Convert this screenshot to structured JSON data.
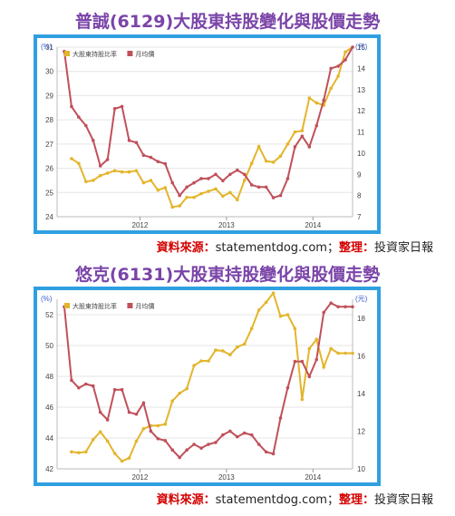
{
  "charts": [
    {
      "title": "普誠(6129)大股東持股變化與股價走勢",
      "source": {
        "label": "資料來源：",
        "site": "statementdog.com",
        "sep": "；",
        "label2": "整理：",
        "by": "投資家日報"
      },
      "chart_data": {
        "type": "line",
        "left_axis": {
          "unit": "(%)",
          "ylim": [
            24,
            31
          ],
          "ticks": [
            24,
            25,
            26,
            27,
            28,
            29,
            30,
            31
          ]
        },
        "right_axis": {
          "unit": "(元)",
          "ylim": [
            7,
            15
          ],
          "ticks": [
            7,
            8,
            9,
            10,
            11,
            12,
            13,
            14,
            15
          ]
        },
        "x_ticks": [
          "2012",
          "2013",
          "2014"
        ],
        "x_tick_positions": [
          11.5,
          23.5,
          35.5
        ],
        "x_range": [
          0,
          41
        ],
        "series": [
          {
            "name": "大股東持股比率",
            "axis": "left",
            "color": "#e3b52b",
            "x": [
              2,
              3,
              4,
              5,
              6,
              7,
              8,
              9,
              10,
              11,
              12,
              13,
              14,
              15,
              16,
              17,
              18,
              19,
              20,
              21,
              22,
              23,
              24,
              25,
              26,
              27,
              28,
              29,
              30,
              31,
              32,
              33,
              34,
              35,
              36,
              37,
              38,
              39,
              40,
              41
            ],
            "values": [
              26.4,
              26.2,
              25.45,
              25.5,
              25.7,
              25.8,
              25.9,
              25.85,
              25.85,
              25.9,
              25.4,
              25.5,
              25.1,
              25.2,
              24.4,
              24.45,
              24.8,
              24.8,
              24.95,
              25.05,
              25.15,
              24.85,
              25.0,
              24.7,
              25.5,
              26.2,
              26.9,
              26.3,
              26.25,
              26.5,
              27.0,
              27.5,
              27.55,
              28.9,
              28.7,
              28.6,
              29.3,
              29.8,
              30.8,
              31.0
            ]
          },
          {
            "name": "月均價",
            "axis": "right",
            "color": "#c0505a",
            "x": [
              1,
              2,
              3,
              4,
              5,
              6,
              7,
              8,
              9,
              10,
              11,
              12,
              13,
              14,
              15,
              16,
              17,
              18,
              19,
              20,
              21,
              22,
              23,
              24,
              25,
              26,
              27,
              28,
              29,
              30,
              31,
              32,
              33,
              34,
              35,
              36,
              37,
              38,
              39,
              40,
              41
            ],
            "values": [
              14.8,
              12.2,
              11.7,
              11.3,
              10.6,
              9.4,
              9.7,
              12.1,
              12.2,
              10.6,
              10.5,
              9.9,
              9.8,
              9.6,
              9.5,
              8.6,
              8.0,
              8.4,
              8.6,
              8.8,
              8.8,
              9.0,
              8.7,
              9.0,
              9.2,
              9.0,
              8.5,
              8.4,
              8.4,
              7.9,
              8.0,
              8.8,
              10.3,
              10.8,
              10.3,
              11.3,
              12.5,
              14.0,
              14.1,
              14.4,
              15.0
            ]
          }
        ]
      }
    },
    {
      "title": "悠克(6131)大股東持股變化與股價走勢",
      "source": {
        "label": "資料來源：",
        "site": "statementdog.com",
        "sep": "；",
        "label2": "整理：",
        "by": "投資家日報"
      },
      "chart_data": {
        "type": "line",
        "left_axis": {
          "unit": "(%)",
          "ylim": [
            42,
            53
          ],
          "ticks": [
            42,
            44,
            46,
            48,
            50,
            52
          ]
        },
        "right_axis": {
          "unit": "(元)",
          "ylim": [
            10,
            19
          ],
          "ticks": [
            10,
            12,
            14,
            16,
            18
          ]
        },
        "x_ticks": [
          "2012",
          "2013",
          "2014"
        ],
        "x_tick_positions": [
          11.5,
          23.5,
          35.5
        ],
        "x_range": [
          0,
          41
        ],
        "series": [
          {
            "name": "大股東持股比率",
            "axis": "left",
            "color": "#e3b52b",
            "x": [
              2,
              3,
              4,
              5,
              6,
              7,
              8,
              9,
              10,
              11,
              12,
              13,
              14,
              15,
              16,
              17,
              18,
              19,
              20,
              21,
              22,
              23,
              24,
              25,
              26,
              27,
              28,
              29,
              30,
              31,
              32,
              33,
              34,
              35,
              36,
              37,
              38,
              39,
              40,
              41
            ],
            "values": [
              43.1,
              43.05,
              43.1,
              43.9,
              44.4,
              43.8,
              43.0,
              42.5,
              42.7,
              43.8,
              44.6,
              44.8,
              44.8,
              44.9,
              46.4,
              46.9,
              47.2,
              48.7,
              49.0,
              49.0,
              49.7,
              49.65,
              49.4,
              49.9,
              50.1,
              51.1,
              52.3,
              52.8,
              53.4,
              51.9,
              52.0,
              51.1,
              46.5,
              49.8,
              50.4,
              48.6,
              49.8,
              49.5,
              49.5,
              49.5
            ]
          },
          {
            "name": "月均價",
            "axis": "right",
            "color": "#c0505a",
            "x": [
              1,
              2,
              3,
              4,
              5,
              6,
              7,
              8,
              9,
              10,
              11,
              12,
              13,
              14,
              15,
              16,
              17,
              18,
              19,
              20,
              21,
              22,
              23,
              24,
              25,
              26,
              27,
              28,
              29,
              30,
              31,
              32,
              33,
              34,
              35,
              36,
              37,
              38,
              39,
              40,
              41
            ],
            "values": [
              18.6,
              14.7,
              14.3,
              14.5,
              14.4,
              13.0,
              12.6,
              14.2,
              14.2,
              13.0,
              12.9,
              13.5,
              12.0,
              11.6,
              11.5,
              11.0,
              10.6,
              11.0,
              11.3,
              11.1,
              11.3,
              11.4,
              11.8,
              12.0,
              11.7,
              11.9,
              11.8,
              11.3,
              10.9,
              10.8,
              12.7,
              14.3,
              15.7,
              15.7,
              14.9,
              15.8,
              18.3,
              18.8,
              18.6,
              18.6,
              18.6
            ]
          }
        ]
      }
    }
  ]
}
